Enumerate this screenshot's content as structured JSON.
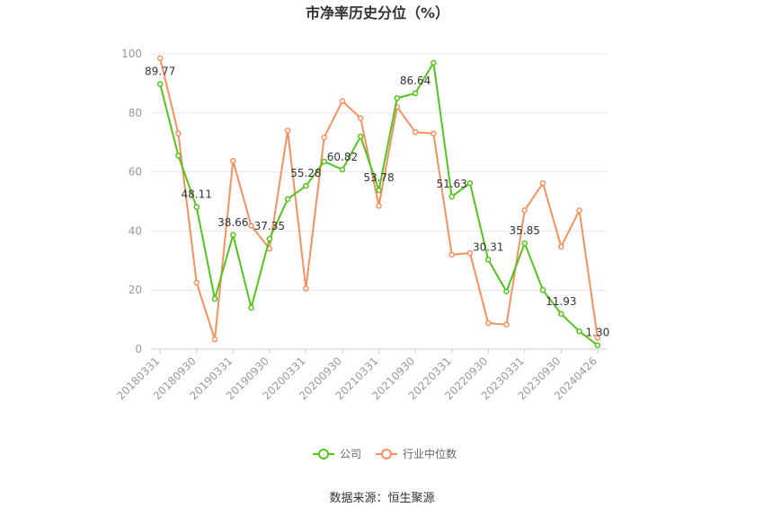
{
  "chart_data": {
    "type": "line",
    "title": "市净率历史分位（%）",
    "ylim": [
      0,
      100
    ],
    "yticks": [
      0,
      20,
      40,
      60,
      80,
      100
    ],
    "x_tick_labels": [
      "20180331",
      "20180930",
      "20190331",
      "20190930",
      "20200331",
      "20200930",
      "20210331",
      "20210930",
      "20220331",
      "20220930",
      "20230331",
      "20230930",
      "20240426"
    ],
    "x": [
      "20180331",
      "20180630",
      "20180930",
      "20181231",
      "20190331",
      "20190630",
      "20190930",
      "20191231",
      "20200331",
      "20200630",
      "20200930",
      "20201231",
      "20210331",
      "20210630",
      "20210930",
      "20211231",
      "20220331",
      "20220630",
      "20220930",
      "20221231",
      "20230331",
      "20230630",
      "20230930",
      "20231231",
      "20240426"
    ],
    "series": [
      {
        "name": "公司",
        "color": "#52c41a",
        "values": [
          89.77,
          65.5,
          48.11,
          17.0,
          38.66,
          14.0,
          37.35,
          50.8,
          55.28,
          63.5,
          60.82,
          72.0,
          53.78,
          85.0,
          86.64,
          97.0,
          51.63,
          56.2,
          30.31,
          19.5,
          35.85,
          20.0,
          11.93,
          6.0,
          1.3
        ],
        "data_labels": {
          "0": "89.77",
          "2": "48.11",
          "4": "38.66",
          "6": "37.35",
          "8": "55.28",
          "10": "60.82",
          "12": "53.78",
          "14": "86.64",
          "16": "51.63",
          "18": "30.31",
          "20": "35.85",
          "22": "11.93",
          "24": "1.30"
        }
      },
      {
        "name": "行业中位数",
        "color": "#f4915f",
        "values": [
          98.5,
          73.0,
          22.5,
          3.3,
          63.8,
          41.8,
          34.0,
          74.0,
          20.5,
          71.7,
          84.0,
          78.2,
          48.5,
          82.0,
          73.5,
          73.0,
          32.0,
          32.5,
          8.8,
          8.3,
          47.0,
          56.2,
          34.7,
          47.0,
          3.8
        ]
      }
    ],
    "grid": true,
    "legend_position": "bottom"
  },
  "source_text": "数据来源：恒生聚源"
}
